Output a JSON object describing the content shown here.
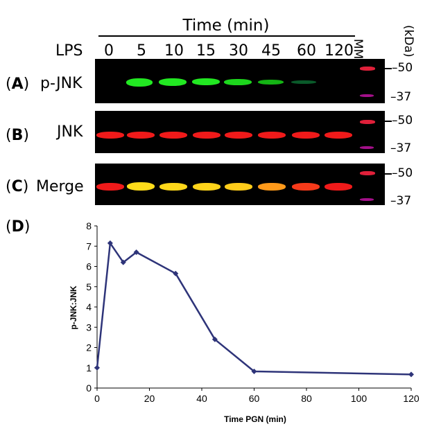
{
  "header": {
    "time_title": "Time (min)",
    "lps_label": "LPS",
    "mm_label": "MM",
    "kda_label": "(kDa)",
    "lanes": [
      "0",
      "5",
      "10",
      "15",
      "30",
      "45",
      "60",
      "120"
    ]
  },
  "panels": {
    "a": {
      "letter": "A",
      "name": "p-JNK"
    },
    "b": {
      "letter": "B",
      "name": "JNK"
    },
    "c": {
      "letter": "C",
      "name": "Merge"
    },
    "d": {
      "letter": "D"
    }
  },
  "markers": {
    "upper": "50",
    "lower": "37"
  },
  "colors": {
    "pjnk_band": "#1ee81e",
    "jnk_band": "#ff1a1a",
    "merge_band": "#ffd21a",
    "ladder_red": "#e0203a",
    "ladder_magenta": "#a4108a",
    "line": "#2e3479"
  },
  "chart_data": {
    "type": "line",
    "title": "",
    "xlabel": "Time PGN (min)",
    "ylabel": "p-JNK:JNK",
    "x": [
      0,
      5,
      10,
      15,
      30,
      45,
      60,
      120
    ],
    "series": [
      {
        "name": "p-JNK:JNK",
        "values": [
          1.0,
          7.15,
          6.2,
          6.7,
          5.65,
          2.4,
          0.82,
          0.67
        ]
      }
    ],
    "xlim": [
      0,
      120
    ],
    "ylim": [
      0,
      8
    ],
    "xticks": [
      "0",
      "20",
      "40",
      "60",
      "80",
      "100",
      "120"
    ],
    "yticks": [
      "0",
      "1",
      "2",
      "3",
      "4",
      "5",
      "6",
      "7",
      "8"
    ],
    "grid": false,
    "marker": "diamond"
  }
}
